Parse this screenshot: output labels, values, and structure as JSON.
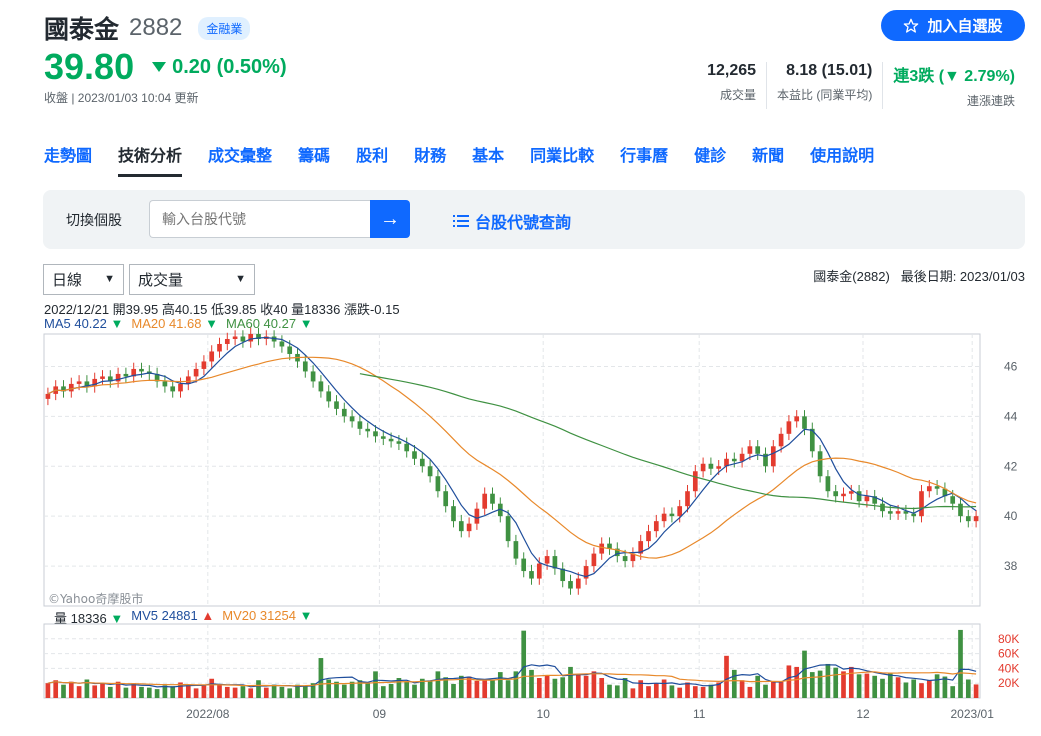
{
  "stock": {
    "name": "國泰金",
    "code": "2882",
    "badge": "金融業"
  },
  "follow_button": "加入自選股",
  "quote": {
    "price": "39.80",
    "change": "0.20 (0.50%)",
    "close_time": "收盤 | 2023/01/03 10:04 更新"
  },
  "stats": [
    {
      "value": "12,265",
      "label": "成交量"
    },
    {
      "value": "8.18 (15.01)",
      "label": "本益比 (同業平均)"
    },
    {
      "value": "連3跌 (▼ 2.79%)",
      "label": "連漲連跌"
    }
  ],
  "nav_tabs": [
    "走勢圖",
    "技術分析",
    "成交彙整",
    "籌碼",
    "股利",
    "財務",
    "基本",
    "同業比較",
    "行事曆",
    "健診",
    "新聞",
    "使用說明"
  ],
  "search": {
    "label": "切換個股",
    "placeholder": "輸入台股代號",
    "lookup": "台股代號查詢"
  },
  "controls": {
    "period": "日線",
    "indicator": "成交量"
  },
  "chart_header": {
    "name": "國泰金(2882)",
    "last_date": "最後日期: 2023/01/03"
  },
  "ohlc_text": "2022/12/21 開39.95 高40.15 低39.85 收40 量18336 漲跌-0.15",
  "ma_legend": [
    {
      "label": "MA5 40.22",
      "dir": "▼",
      "color": "#1f4e9c"
    },
    {
      "label": "MA20 41.68",
      "dir": "▼",
      "color": "#e8892b"
    },
    {
      "label": "MA60 40.27",
      "dir": "▼",
      "color": "#3f9142"
    }
  ],
  "vol_legend": [
    {
      "label": "量 18336",
      "dir": "▼",
      "color": "#232a31"
    },
    {
      "label": "MV5 24881",
      "dir": "▲",
      "color": "#1f4e9c"
    },
    {
      "label": "MV20 31254",
      "dir": "▼",
      "color": "#e8892b"
    }
  ],
  "watermark": "©Yahoo奇摩股市",
  "colors": {
    "up": "#e33b2f",
    "down": "#3f9142",
    "ma5": "#1f4e9c",
    "ma20": "#e8892b",
    "ma60": "#3f9142",
    "accent": "#0f69ff"
  },
  "chart_data": {
    "type": "candlestick",
    "price_axis": {
      "ticks": [
        38,
        40,
        42,
        44,
        46
      ],
      "ylim": [
        36.4,
        47.3
      ]
    },
    "volume_axis": {
      "ticks": [
        "20K",
        "40K",
        "60K",
        "80K"
      ],
      "ylim": [
        0,
        100000
      ]
    },
    "x_ticks": [
      "2022/08",
      "09",
      "10",
      "11",
      "12",
      "2023/01"
    ],
    "grid": true,
    "closes": [
      44.9,
      45.2,
      45.0,
      45.3,
      45.4,
      45.2,
      45.5,
      45.6,
      45.4,
      45.7,
      45.6,
      45.9,
      45.8,
      45.7,
      45.4,
      45.2,
      45.0,
      45.3,
      45.6,
      45.9,
      46.2,
      46.6,
      46.9,
      47.1,
      47.2,
      47.0,
      47.3,
      47.1,
      47.2,
      47.0,
      46.8,
      46.5,
      46.2,
      45.8,
      45.4,
      45.0,
      44.6,
      44.3,
      44.0,
      43.8,
      43.5,
      43.4,
      43.2,
      43.1,
      43.0,
      42.9,
      42.6,
      42.3,
      42.0,
      41.6,
      41.0,
      40.4,
      39.8,
      39.4,
      39.7,
      40.3,
      40.9,
      40.5,
      40.0,
      39.0,
      38.3,
      37.8,
      37.5,
      38.1,
      38.4,
      37.9,
      37.4,
      37.1,
      37.5,
      38.0,
      38.5,
      38.9,
      38.7,
      38.4,
      38.2,
      38.5,
      39.0,
      39.4,
      39.8,
      40.1,
      40.0,
      40.4,
      41.0,
      41.8,
      42.1,
      41.9,
      42.0,
      42.3,
      42.2,
      42.5,
      42.8,
      42.5,
      42.0,
      42.8,
      43.3,
      43.8,
      44.0,
      43.5,
      42.6,
      41.6,
      41.0,
      40.8,
      40.9,
      41.0,
      40.6,
      40.8,
      40.5,
      40.2,
      40.1,
      40.2,
      40.1,
      40.0,
      41.0,
      41.2,
      41.1,
      40.8,
      40.5,
      40.0,
      39.8,
      40.0
    ],
    "volumes": [
      20000,
      24000,
      18000,
      22000,
      16000,
      25000,
      17000,
      19000,
      15000,
      22000,
      14000,
      20000,
      15000,
      14000,
      12000,
      17000,
      16000,
      21000,
      18000,
      13000,
      17000,
      26000,
      18000,
      15000,
      14000,
      16000,
      13000,
      24000,
      14000,
      18000,
      15000,
      13000,
      18000,
      16000,
      20000,
      54000,
      25000,
      22000,
      18000,
      22000,
      24000,
      20000,
      36000,
      16000,
      19000,
      27000,
      22000,
      18000,
      26000,
      23000,
      36000,
      28000,
      19000,
      30000,
      29000,
      23000,
      25000,
      24000,
      35000,
      24000,
      36000,
      91000,
      38000,
      27000,
      31000,
      26000,
      28000,
      42000,
      32000,
      30000,
      36000,
      27000,
      18000,
      17000,
      27000,
      13000,
      24000,
      16000,
      20000,
      25000,
      17000,
      14000,
      21000,
      16000,
      15000,
      18000,
      21000,
      57000,
      38000,
      24000,
      15000,
      30000,
      18000,
      22000,
      23000,
      44000,
      42000,
      64000,
      35000,
      37000,
      46000,
      41000,
      36000,
      42000,
      32000,
      33000,
      30000,
      26000,
      33000,
      28000,
      21000,
      25000,
      20000,
      24000,
      32000,
      29000,
      16000,
      92000,
      25000,
      18336
    ],
    "ma5_last": 40.22,
    "ma20_last": 41.68,
    "ma60_last": 40.27
  }
}
